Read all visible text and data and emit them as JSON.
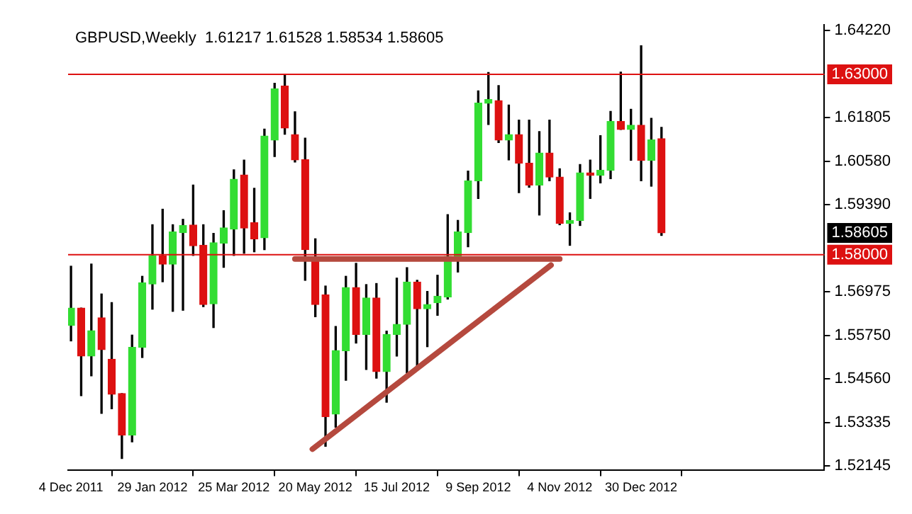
{
  "chart_data": {
    "type": "candlestick",
    "title": "GBPUSD,Weekly  1.61217 1.61528 1.58534 1.58605",
    "x": [
      "2011-12-04",
      "2011-12-11",
      "2011-12-18",
      "2011-12-25",
      "2012-01-01",
      "2012-01-08",
      "2012-01-15",
      "2012-01-22",
      "2012-01-29",
      "2012-02-05",
      "2012-02-12",
      "2012-02-19",
      "2012-02-26",
      "2012-03-04",
      "2012-03-11",
      "2012-03-18",
      "2012-03-25",
      "2012-04-01",
      "2012-04-08",
      "2012-04-15",
      "2012-04-22",
      "2012-04-29",
      "2012-05-06",
      "2012-05-13",
      "2012-05-20",
      "2012-05-27",
      "2012-06-03",
      "2012-06-10",
      "2012-06-17",
      "2012-06-24",
      "2012-07-01",
      "2012-07-08",
      "2012-07-15",
      "2012-07-22",
      "2012-07-29",
      "2012-08-05",
      "2012-08-12",
      "2012-08-19",
      "2012-08-26",
      "2012-09-02",
      "2012-09-09",
      "2012-09-16",
      "2012-09-23",
      "2012-09-30",
      "2012-10-07",
      "2012-10-14",
      "2012-10-21",
      "2012-10-28",
      "2012-11-04",
      "2012-11-11",
      "2012-11-18",
      "2012-11-25",
      "2012-12-02",
      "2012-12-09",
      "2012-12-16",
      "2012-12-23",
      "2012-12-30",
      "2013-01-06",
      "2013-01-13"
    ],
    "ohlc": [
      [
        1.5604,
        1.5768,
        1.5561,
        1.5652
      ],
      [
        1.5652,
        1.5652,
        1.5409,
        1.5519
      ],
      [
        1.5519,
        1.5774,
        1.5464,
        1.5589
      ],
      [
        1.5625,
        1.5691,
        1.536,
        1.5537
      ],
      [
        1.551,
        1.5667,
        1.5373,
        1.5413
      ],
      [
        1.5415,
        1.5415,
        1.5235,
        1.53
      ],
      [
        1.53,
        1.5577,
        1.5281,
        1.5543
      ],
      [
        1.5543,
        1.574,
        1.5515,
        1.5722
      ],
      [
        1.5719,
        1.5883,
        1.5649,
        1.5797
      ],
      [
        1.5797,
        1.5926,
        1.5725,
        1.5774
      ],
      [
        1.5774,
        1.5883,
        1.5643,
        1.5863
      ],
      [
        1.5861,
        1.5898,
        1.5646,
        1.5881
      ],
      [
        1.5882,
        1.5993,
        1.5798,
        1.5825
      ],
      [
        1.5826,
        1.5883,
        1.5656,
        1.5662
      ],
      [
        1.5664,
        1.5859,
        1.5598,
        1.5833
      ],
      [
        1.5832,
        1.5922,
        1.5765,
        1.5874
      ],
      [
        1.5871,
        1.6035,
        1.5798,
        1.6009
      ],
      [
        1.6021,
        1.6062,
        1.5804,
        1.5874
      ],
      [
        1.5889,
        1.5984,
        1.5808,
        1.5844
      ],
      [
        1.5847,
        1.6148,
        1.5814,
        1.6129
      ],
      [
        1.6118,
        1.6275,
        1.6072,
        1.626
      ],
      [
        1.6268,
        1.6297,
        1.6134,
        1.6151
      ],
      [
        1.6133,
        1.6196,
        1.6057,
        1.6063
      ],
      [
        1.6063,
        1.6123,
        1.5729,
        1.5814
      ],
      [
        1.5792,
        1.5844,
        1.5628,
        1.5662
      ],
      [
        1.5689,
        1.5713,
        1.5269,
        1.5351
      ],
      [
        1.5358,
        1.5601,
        1.5322,
        1.5534
      ],
      [
        1.5534,
        1.574,
        1.5452,
        1.5709
      ],
      [
        1.5709,
        1.5776,
        1.5555,
        1.5579
      ],
      [
        1.5579,
        1.5717,
        1.5482,
        1.568
      ],
      [
        1.568,
        1.572,
        1.5458,
        1.5476
      ],
      [
        1.5476,
        1.5588,
        1.5391,
        1.5579
      ],
      [
        1.5579,
        1.5735,
        1.5519,
        1.5607
      ],
      [
        1.5607,
        1.5764,
        1.5472,
        1.5724
      ],
      [
        1.5724,
        1.5729,
        1.549,
        1.565
      ],
      [
        1.565,
        1.5698,
        1.5545,
        1.5662
      ],
      [
        1.5667,
        1.5743,
        1.5632,
        1.5685
      ],
      [
        1.5683,
        1.5911,
        1.5677,
        1.5795
      ],
      [
        1.5795,
        1.5895,
        1.5752,
        1.5863
      ],
      [
        1.5861,
        1.6032,
        1.5822,
        1.6005
      ],
      [
        1.6005,
        1.6254,
        1.5956,
        1.622
      ],
      [
        1.622,
        1.6305,
        1.6161,
        1.623
      ],
      [
        1.6227,
        1.6269,
        1.6111,
        1.6118
      ],
      [
        1.6118,
        1.6215,
        1.6063,
        1.6133
      ],
      [
        1.6133,
        1.6173,
        1.5972,
        1.6054
      ],
      [
        1.6054,
        1.6173,
        1.5987,
        1.5993
      ],
      [
        1.5993,
        1.6141,
        1.591,
        1.6082
      ],
      [
        1.6082,
        1.6173,
        1.6005,
        1.6015
      ],
      [
        1.6015,
        1.6038,
        1.5883,
        1.5887
      ],
      [
        1.5887,
        1.5916,
        1.5826,
        1.5895
      ],
      [
        1.5895,
        1.605,
        1.5881,
        1.6027
      ],
      [
        1.6027,
        1.6062,
        1.5956,
        1.602
      ],
      [
        1.602,
        1.613,
        1.5999,
        1.6034
      ],
      [
        1.6034,
        1.6197,
        1.6011,
        1.6169
      ],
      [
        1.6169,
        1.6306,
        1.6147,
        1.6147
      ],
      [
        1.6147,
        1.6203,
        1.6062,
        1.6159
      ],
      [
        1.6159,
        1.6379,
        1.6005,
        1.6062
      ],
      [
        1.6062,
        1.6178,
        1.599,
        1.6118
      ],
      [
        1.61217,
        1.61528,
        1.58534,
        1.58605
      ]
    ],
    "colors": [
      "#33dd33",
      "#dd1111",
      "#33dd33",
      "#dd1111",
      "#dd1111",
      "#dd1111",
      "#33dd33",
      "#33dd33",
      "#33dd33",
      "#dd1111",
      "#33dd33",
      "#33dd33",
      "#dd1111",
      "#dd1111",
      "#33dd33",
      "#33dd33",
      "#33dd33",
      "#dd1111",
      "#dd1111",
      "#33dd33",
      "#33dd33",
      "#dd1111",
      "#dd1111",
      "#dd1111",
      "#dd1111",
      "#dd1111",
      "#33dd33",
      "#33dd33",
      "#dd1111",
      "#33dd33",
      "#dd1111",
      "#33dd33",
      "#33dd33",
      "#33dd33",
      "#dd1111",
      "#33dd33",
      "#33dd33",
      "#33dd33",
      "#33dd33",
      "#33dd33",
      "#33dd33",
      "#33dd33",
      "#dd1111",
      "#33dd33",
      "#dd1111",
      "#dd1111",
      "#33dd33",
      "#dd1111",
      "#dd1111",
      "#33dd33",
      "#33dd33",
      "#dd1111",
      "#33dd33",
      "#33dd33",
      "#dd1111",
      "#33dd33",
      "#dd1111",
      "#33dd33",
      "#dd1111"
    ],
    "series": [
      {
        "type": "line",
        "color": "#b5493e",
        "x": [
          "2012-05-06",
          "2012-11-04"
        ],
        "values": [
          1.5788,
          1.5788
        ]
      },
      {
        "type": "line",
        "color": "#b5493e",
        "x": [
          "2012-05-18",
          "2012-10-29"
        ],
        "values": [
          1.5261,
          1.5771
        ]
      }
    ],
    "xlim": [
      "2011-12-02",
      "2013-05-05"
    ],
    "xticks": [
      {
        "value": "2011-12-04",
        "label": "4 Dec 2011"
      },
      {
        "value": "2012-01-29",
        "label": "29 Jan 2012"
      },
      {
        "value": "2012-03-25",
        "label": "25 Mar 2012"
      },
      {
        "value": "2012-05-20",
        "label": "20 May 2012"
      },
      {
        "value": "2012-07-15",
        "label": "15 Jul 2012"
      },
      {
        "value": "2012-09-09",
        "label": "9 Sep 2012"
      },
      {
        "value": "2012-11-04",
        "label": "4 Nov 2012"
      },
      {
        "value": "2012-12-30",
        "label": "30 Dec 2012"
      }
    ],
    "ylim": [
      1.5202,
      1.6437
    ],
    "yticks": [
      {
        "value": 1.52145,
        "label": "1.52145"
      },
      {
        "value": 1.53335,
        "label": "1.53335"
      },
      {
        "value": 1.5456,
        "label": "1.54560"
      },
      {
        "value": 1.5575,
        "label": "1.55750"
      },
      {
        "value": 1.56975,
        "label": "1.56975"
      },
      {
        "value": 1.5939,
        "label": "1.59390"
      },
      {
        "value": 1.6058,
        "label": "1.60580"
      },
      {
        "value": 1.61805,
        "label": "1.61805"
      },
      {
        "value": 1.6422,
        "label": "1.64220"
      }
    ],
    "ref_lines": [
      {
        "axis": "y",
        "value": 1.63,
        "label": "1.63000",
        "color": "#dd1111"
      },
      {
        "axis": "y",
        "value": 1.58,
        "label": "1.58000",
        "color": "#dd1111"
      }
    ],
    "annotations": [
      "1.58605"
    ],
    "marker": "none"
  }
}
